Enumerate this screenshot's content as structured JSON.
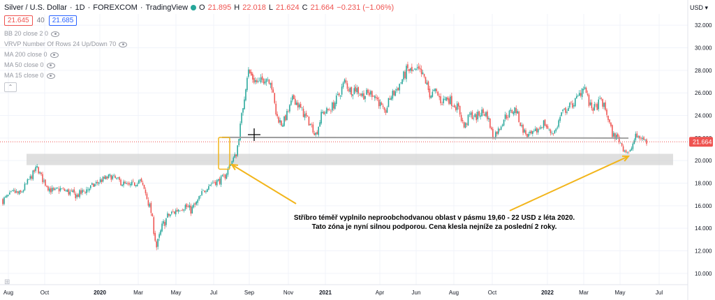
{
  "header": {
    "symbol": "Silver / U.S. Dollar",
    "interval": "1D",
    "exchange": "FOREXCOM",
    "source": "TradingView",
    "o_label": "O",
    "o_value": "21.895",
    "h_label": "H",
    "h_value": "22.018",
    "l_label": "L",
    "l_value": "21.624",
    "c_label": "C",
    "c_value": "21.664",
    "change": "−0.231 (−1.06%)"
  },
  "quote": {
    "bid": "21.645",
    "spread": "40",
    "ask": "21.685"
  },
  "indicators": [
    "BB 20 close 2 0",
    "VRVP Number Of Rows 24 Up/Down 70",
    "MA 200 close 0",
    "MA 50 close 0",
    "MA 15 close 0"
  ],
  "currency": "USD",
  "last_price_label": "21.664",
  "annotation": [
    "Stříbro téměř vyplnilo neproobchodvanou oblast v pásmu 19,60 - 22 USD z léta 2020.",
    "Tato zóna je nyní silnou podporou. Cena klesla nejníže za poslední 2 roky."
  ],
  "colors": {
    "up": "#26a69a",
    "down": "#ef5350",
    "arrow": "#f2b51b",
    "zone": "#d4d4d4",
    "support": "#9e9e9e"
  },
  "chart_data": {
    "type": "candlestick",
    "ylim": [
      9,
      33
    ],
    "y_ticks": [
      "10.000",
      "12.000",
      "14.000",
      "16.000",
      "18.000",
      "20.000",
      "22.000",
      "24.000",
      "26.000",
      "28.000",
      "30.000",
      "32.000"
    ],
    "x_ticks": [
      "Aug",
      "Oct",
      "2020",
      "Mar",
      "May",
      "Jul",
      "Sep",
      "Nov",
      "2021",
      "Apr",
      "Jun",
      "Aug",
      "Oct",
      "2022",
      "Mar",
      "May",
      "Jul"
    ],
    "last_price": 21.664,
    "support_zone": [
      19.6,
      20.6
    ],
    "support_line": 22.0,
    "closes": [
      16.5,
      16.8,
      17.2,
      17.0,
      17.8,
      18.6,
      19.4,
      18.3,
      17.6,
      17.2,
      17.5,
      17.3,
      17.1,
      16.9,
      17.2,
      17.5,
      17.8,
      18.2,
      18.4,
      18.6,
      18.3,
      18.0,
      17.7,
      17.9,
      18.3,
      17.2,
      15.5,
      12.3,
      14.2,
      15.1,
      15.4,
      15.8,
      16.0,
      15.6,
      16.2,
      17.1,
      17.8,
      18.1,
      18.2,
      18.6,
      19.8,
      20.6,
      24.2,
      28.0,
      27.2,
      26.8,
      27.4,
      27.2,
      24.0,
      23.2,
      24.2,
      25.6,
      24.8,
      24.0,
      23.2,
      22.3,
      24.2,
      24.4,
      24.9,
      25.8,
      27.0,
      26.2,
      26.4,
      25.8,
      25.9,
      26.0,
      25.2,
      24.1,
      25.6,
      26.2,
      27.1,
      28.1,
      27.8,
      27.9,
      27.3,
      25.8,
      26.1,
      25.2,
      25.6,
      25.1,
      24.6,
      22.9,
      24.1,
      23.8,
      24.3,
      24.1,
      22.2,
      22.7,
      23.8,
      24.2,
      24.6,
      23.0,
      22.2,
      22.3,
      22.8,
      23.4,
      22.5,
      22.6,
      24.1,
      24.6,
      25.0,
      25.6,
      26.8,
      24.8,
      24.6,
      25.4,
      24.2,
      22.3,
      22.0,
      21.0,
      20.6,
      22.1,
      22.1,
      21.6
    ]
  }
}
